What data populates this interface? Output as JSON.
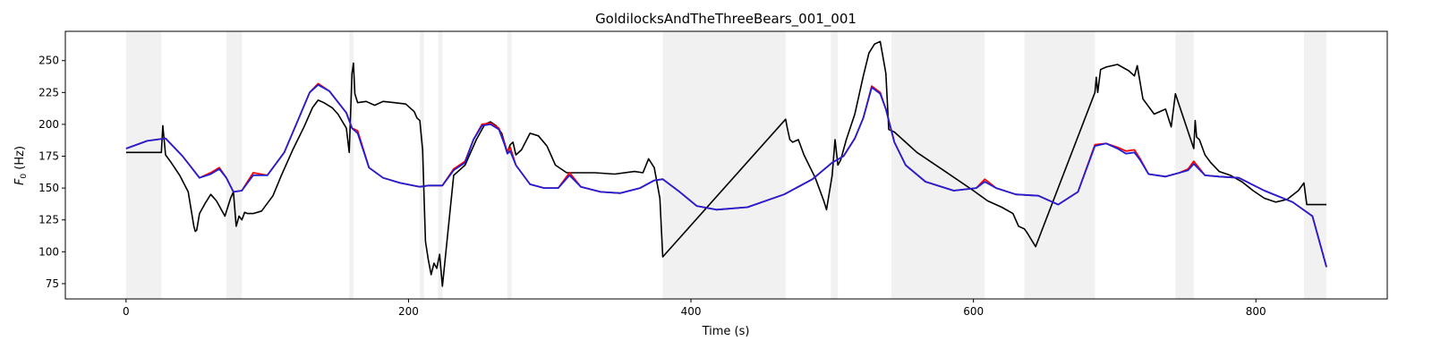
{
  "chart_data": {
    "type": "line",
    "title": "GoldilocksAndTheThreeBears_001_001",
    "xlabel": "Time (s)",
    "ylabel_main": "F",
    "ylabel_sub": "0",
    "ylabel_unit": " (Hz)",
    "xlim": [
      -43,
      893
    ],
    "ylim": [
      63,
      273
    ],
    "xticks": [
      0,
      200,
      400,
      600,
      800
    ],
    "yticks": [
      75,
      100,
      125,
      150,
      175,
      200,
      225,
      250
    ],
    "grid": false,
    "legend": "none",
    "colors": {
      "black": "#000000",
      "red": "#ff0000",
      "blue": "#1f1fd6",
      "shade": "#e6e6e6"
    },
    "shaded_regions": [
      [
        0,
        25
      ],
      [
        71,
        82
      ],
      [
        158,
        161
      ],
      [
        208,
        211
      ],
      [
        221,
        224
      ],
      [
        270,
        273
      ],
      [
        380,
        467
      ],
      [
        499,
        504
      ],
      [
        542,
        608
      ],
      [
        636,
        686
      ],
      [
        743,
        756
      ],
      [
        834,
        850
      ]
    ],
    "series": [
      {
        "color": "#000000",
        "x": [
          0,
          25,
          26,
          28,
          32,
          38,
          44,
          48,
          49,
          50,
          52,
          56,
          60,
          64,
          70,
          74,
          76,
          78,
          80,
          82,
          84,
          86,
          90,
          96,
          104,
          110,
          118,
          126,
          132,
          136,
          140,
          146,
          150,
          156,
          158,
          160,
          161,
          162,
          164,
          170,
          176,
          182,
          190,
          198,
          204,
          206,
          208,
          210,
          212,
          214,
          216,
          218,
          220,
          222,
          224,
          226,
          232,
          240,
          248,
          254,
          258,
          262,
          266,
          270,
          272,
          274,
          276,
          280,
          286,
          292,
          298,
          304,
          312,
          320,
          332,
          346,
          360,
          366,
          370,
          374,
          378,
          380,
          467,
          468,
          470,
          472,
          476,
          480,
          488,
          494,
          496,
          500,
          502,
          504,
          506,
          510,
          516,
          522,
          526,
          530,
          534,
          538,
          540,
          544,
          560,
          580,
          600,
          610,
          620,
          628,
          632,
          636,
          638,
          644,
          686,
          687,
          688,
          690,
          694,
          702,
          710,
          714,
          716,
          720,
          728,
          736,
          740,
          743,
          756,
          757,
          758,
          760,
          764,
          768,
          774,
          782,
          790,
          798,
          806,
          814,
          822,
          830,
          834,
          836,
          850
        ],
        "values": [
          178,
          178,
          199,
          176,
          170,
          160,
          147,
          120,
          116,
          117,
          130,
          138,
          145,
          140,
          128,
          142,
          147,
          120,
          128,
          125,
          131,
          130,
          130,
          132,
          144,
          160,
          180,
          198,
          213,
          219,
          217,
          213,
          208,
          197,
          178,
          240,
          248,
          224,
          217,
          218,
          215,
          218,
          217,
          216,
          210,
          205,
          203,
          180,
          108,
          94,
          82,
          91,
          87,
          98,
          73,
          95,
          160,
          168,
          188,
          200,
          202,
          199,
          193,
          178,
          184,
          186,
          176,
          180,
          193,
          191,
          183,
          168,
          162,
          162,
          162,
          161,
          163,
          162,
          173,
          166,
          142,
          96,
          204,
          198,
          188,
          186,
          188,
          176,
          158,
          140,
          133,
          160,
          188,
          168,
          172,
          188,
          208,
          238,
          256,
          263,
          265,
          240,
          196,
          194,
          178,
          163,
          148,
          140,
          135,
          130,
          120,
          118,
          115,
          104,
          225,
          237,
          225,
          243,
          245,
          247,
          242,
          238,
          246,
          220,
          208,
          212,
          198,
          224,
          181,
          203,
          190,
          188,
          176,
          170,
          163,
          160,
          155,
          148,
          142,
          139,
          141,
          148,
          154,
          137,
          137
        ]
      },
      {
        "color": "#ff0000",
        "x": [
          0,
          15,
          28,
          40,
          52,
          60,
          66,
          71,
          76,
          82,
          90,
          100,
          112,
          122,
          130,
          136,
          144,
          156,
          160,
          164,
          172,
          182,
          194,
          208,
          214,
          224,
          232,
          240,
          246,
          252,
          258,
          264,
          268,
          270,
          272,
          276,
          286,
          296,
          306,
          314,
          322,
          336,
          350,
          364,
          374,
          380,
          392,
          404,
          418,
          440,
          466,
          486,
          500,
          508,
          516,
          522,
          528,
          534,
          538,
          544,
          552,
          566,
          586,
          602,
          608,
          616,
          630,
          646,
          660,
          674,
          686,
          694,
          702,
          708,
          714,
          718,
          724,
          736,
          746,
          752,
          756,
          764,
          774,
          788,
          806,
          826,
          840,
          850
        ],
        "values": [
          181,
          187,
          189,
          175,
          158,
          162,
          166,
          158,
          147,
          148,
          162,
          160,
          178,
          204,
          225,
          232,
          226,
          209,
          197,
          195,
          166,
          158,
          154,
          151,
          152,
          152,
          165,
          171,
          188,
          200,
          201,
          197,
          185,
          178,
          182,
          168,
          153,
          150,
          150,
          162,
          151,
          147,
          146,
          150,
          156,
          157,
          147,
          136,
          133,
          135,
          145,
          157,
          170,
          175,
          189,
          205,
          230,
          225,
          212,
          186,
          168,
          155,
          148,
          150,
          157,
          150,
          145,
          144,
          137,
          147,
          184,
          185,
          182,
          179,
          180,
          173,
          161,
          159,
          162,
          165,
          171,
          160,
          159,
          158,
          148,
          139,
          128,
          88
        ]
      },
      {
        "color": "#1f1fd6",
        "x": [
          0,
          15,
          28,
          40,
          52,
          60,
          66,
          71,
          76,
          82,
          90,
          100,
          112,
          122,
          130,
          136,
          144,
          156,
          160,
          164,
          172,
          182,
          194,
          208,
          214,
          224,
          232,
          240,
          246,
          252,
          258,
          264,
          268,
          270,
          272,
          276,
          286,
          296,
          306,
          314,
          322,
          336,
          350,
          364,
          374,
          380,
          392,
          404,
          418,
          440,
          466,
          486,
          500,
          508,
          516,
          522,
          528,
          534,
          538,
          544,
          552,
          566,
          586,
          602,
          608,
          616,
          630,
          646,
          660,
          674,
          686,
          694,
          702,
          708,
          714,
          718,
          724,
          736,
          746,
          752,
          756,
          764,
          774,
          788,
          806,
          826,
          840,
          850
        ],
        "values": [
          181,
          187,
          189,
          175,
          158,
          161,
          165,
          158,
          147,
          148,
          160,
          160,
          178,
          204,
          225,
          231,
          226,
          209,
          197,
          193,
          166,
          158,
          154,
          151,
          152,
          152,
          164,
          170,
          188,
          199,
          200,
          196,
          184,
          177,
          179,
          168,
          153,
          150,
          150,
          160,
          151,
          147,
          146,
          150,
          156,
          157,
          147,
          136,
          133,
          135,
          145,
          157,
          170,
          175,
          189,
          205,
          229,
          224,
          212,
          186,
          168,
          155,
          148,
          150,
          155,
          150,
          145,
          144,
          137,
          147,
          183,
          185,
          181,
          177,
          178,
          172,
          161,
          159,
          162,
          164,
          169,
          160,
          159,
          158,
          148,
          139,
          128,
          88
        ]
      }
    ]
  }
}
